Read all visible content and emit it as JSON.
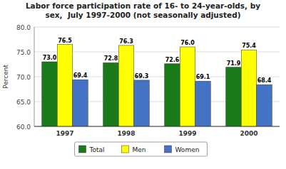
{
  "chart_data": {
    "type": "bar",
    "title": "Labor force participation rate of 16- to 24-year-olds, by\nsex,  July 1997-2000 (not seasonally adjusted)",
    "y_label": "Percent",
    "categories": [
      "1997",
      "1998",
      "1999",
      "2000"
    ],
    "series": [
      {
        "name": "Total",
        "color": "#1a7a1a",
        "values": [
          73.0,
          72.8,
          72.6,
          71.9
        ],
        "value_labels": [
          "73.0",
          "72.8",
          "72.6",
          "71.9"
        ]
      },
      {
        "name": "Men",
        "color": "#ffff00",
        "values": [
          76.5,
          76.3,
          76.0,
          75.4
        ],
        "value_labels": [
          "76.5",
          "76.3",
          "76.0",
          "75.4"
        ]
      },
      {
        "name": "Women",
        "color": "#4472c4",
        "values": [
          69.4,
          69.3,
          69.1,
          68.4
        ],
        "value_labels": [
          "69.4",
          "69.3",
          "69.1",
          "68.4"
        ]
      }
    ],
    "ylim": [
      60.0,
      80.0
    ],
    "yticks": [
      {
        "value": 60.0,
        "label": "60.0"
      },
      {
        "value": 65.0,
        "label": "65.0"
      },
      {
        "value": 70.0,
        "label": "70.0"
      },
      {
        "value": 75.0,
        "label": "75.0"
      },
      {
        "value": 80.0,
        "label": "80.0"
      }
    ],
    "grid": true,
    "data_labels": true,
    "legend": "bottom"
  }
}
